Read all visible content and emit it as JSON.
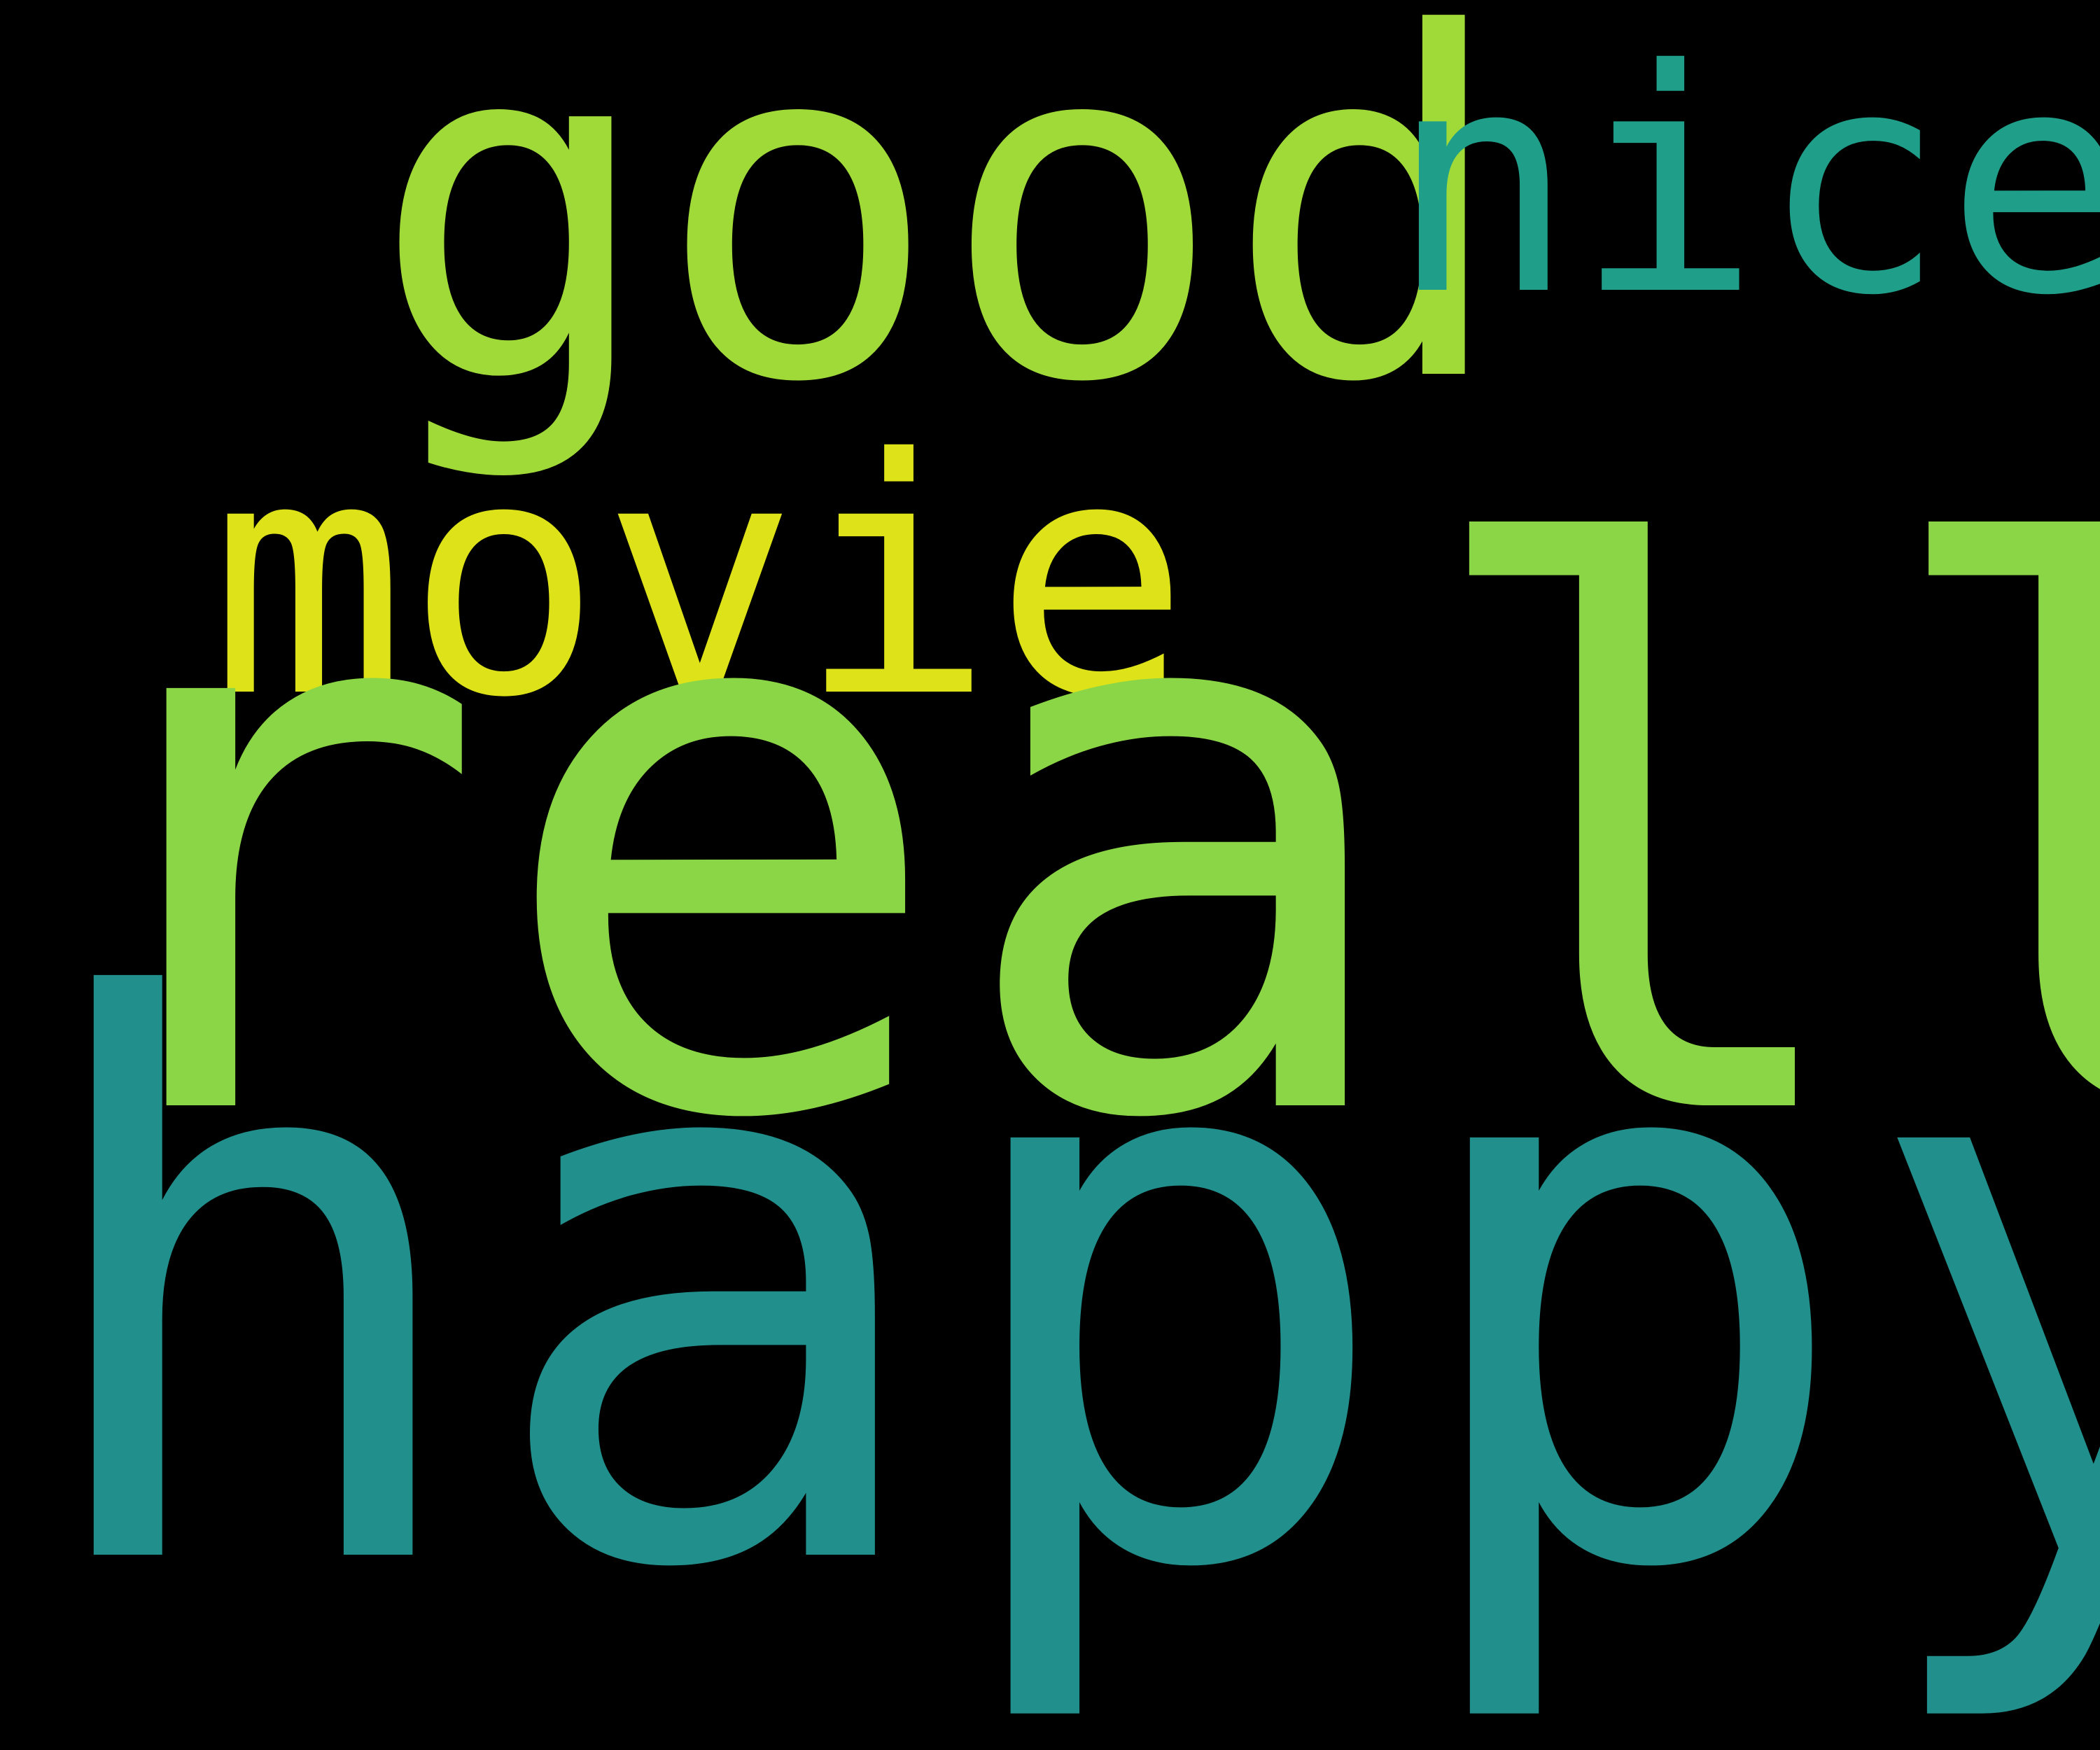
{
  "words": {
    "good": {
      "text": "good",
      "color": "#a0da39"
    },
    "nice": {
      "text": "nice",
      "color": "#1f9e89"
    },
    "movie": {
      "text": "movie",
      "color": "#dde318"
    },
    "really": {
      "text": "really",
      "color": "#8bd646"
    },
    "happy": {
      "text": "happy",
      "color": "#21908d"
    }
  },
  "background": "#000000"
}
